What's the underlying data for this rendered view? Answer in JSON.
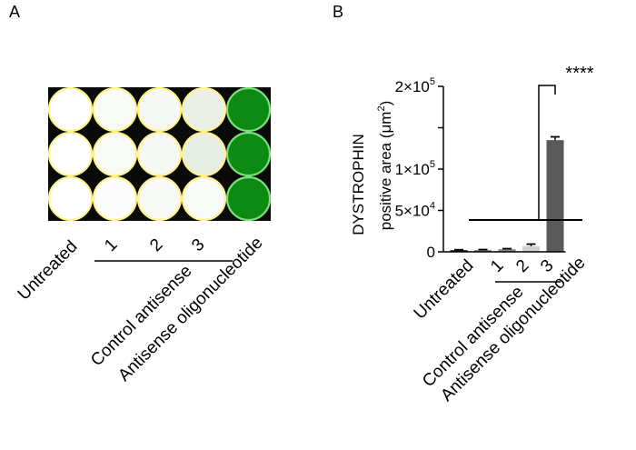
{
  "panels": {
    "a_label": "A",
    "b_label": "B"
  },
  "plate": {
    "columns": [
      "Untreated",
      "1",
      "2",
      "3",
      "Antisense oligonucleotide"
    ],
    "group_label": "Control antisense",
    "colors": {
      "background": "#0a0a0a",
      "well_ring": "#fff48a",
      "green_well": "#0d8a14",
      "green_ring": "#7de07a"
    },
    "wells": [
      [
        "#ffffff",
        "#f8faf8",
        "#f6f8f5",
        "#eaf0e8",
        "#0d8a14"
      ],
      [
        "#ffffff",
        "#f8faf8",
        "#f5f7f4",
        "#e6ede4",
        "#0d8a14"
      ],
      [
        "#ffffff",
        "#fbfcfb",
        "#f7f9f6",
        "#f8faf7",
        "#0d8a14"
      ]
    ]
  },
  "chart_data": {
    "type": "bar",
    "categories": [
      "Untreated",
      "1",
      "2",
      "3",
      "Antisense oligonucleotide"
    ],
    "values": [
      2000,
      2200,
      3200,
      6800,
      135000
    ],
    "errors": [
      500,
      500,
      600,
      2500,
      4000
    ],
    "bar_colors": [
      "#1a1a1a",
      "#8a8a8a",
      "#8a8a8a",
      "#d0d0d0",
      "#5a5a5a"
    ],
    "ylabel_line1": "DYSTROPHIN",
    "ylabel_line2": "positive area (μm",
    "ylabel_sup": "2",
    "ylabel_end": ")",
    "ylim": [
      0,
      200000
    ],
    "yticks": [
      {
        "value": 0,
        "mant": "0",
        "exp": ""
      },
      {
        "value": 50000,
        "mant": "5×10",
        "exp": "4"
      },
      {
        "value": 100000,
        "mant": "1×10",
        "exp": "5"
      },
      {
        "value": 150000,
        "mant": "",
        "exp": ""
      },
      {
        "value": 200000,
        "mant": "2×10",
        "exp": "5"
      }
    ],
    "group_label": "Control antisense",
    "significance": "****"
  }
}
